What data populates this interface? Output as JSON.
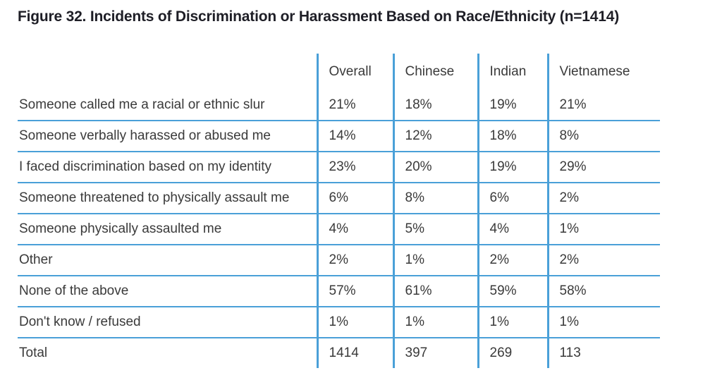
{
  "figure": {
    "title": "Figure 32. Incidents of Discrimination or Harassment Based on Race/Ethnicity (n=1414)"
  },
  "chart_data": {
    "type": "table",
    "title": "Figure 32. Incidents of Discrimination or Harassment Based on Race/Ethnicity (n=1414)",
    "n": 1414,
    "columns": [
      "Overall",
      "Chinese",
      "Indian",
      "Vietnamese"
    ],
    "rows": [
      {
        "label": "Someone called me a racial or ethnic slur",
        "values": [
          "21%",
          "18%",
          "19%",
          "21%"
        ]
      },
      {
        "label": "Someone verbally harassed or abused me",
        "values": [
          "14%",
          "12%",
          "18%",
          "8%"
        ]
      },
      {
        "label": "I faced discrimination based on my identity",
        "values": [
          "23%",
          "20%",
          "19%",
          "29%"
        ]
      },
      {
        "label": "Someone threatened to physically assault me",
        "values": [
          "6%",
          "8%",
          "6%",
          "2%"
        ]
      },
      {
        "label": "Someone physically assaulted me",
        "values": [
          "4%",
          "5%",
          "4%",
          "1%"
        ]
      },
      {
        "label": "Other",
        "values": [
          "2%",
          "1%",
          "2%",
          "2%"
        ]
      },
      {
        "label": "None of the above",
        "values": [
          "57%",
          "61%",
          "59%",
          "58%"
        ]
      },
      {
        "label": "Don't know / refused",
        "values": [
          "1%",
          "1%",
          "1%",
          "1%"
        ]
      },
      {
        "label": "Total",
        "values": [
          "1414",
          "397",
          "269",
          "113"
        ]
      }
    ],
    "layout": {
      "grid": "blue horizontal separators under each data row except last; blue vertical separators before each value column",
      "accent_color": "#4AA0D8",
      "text_color": "#3a3a3a",
      "title_color": "#1e1e26"
    }
  }
}
